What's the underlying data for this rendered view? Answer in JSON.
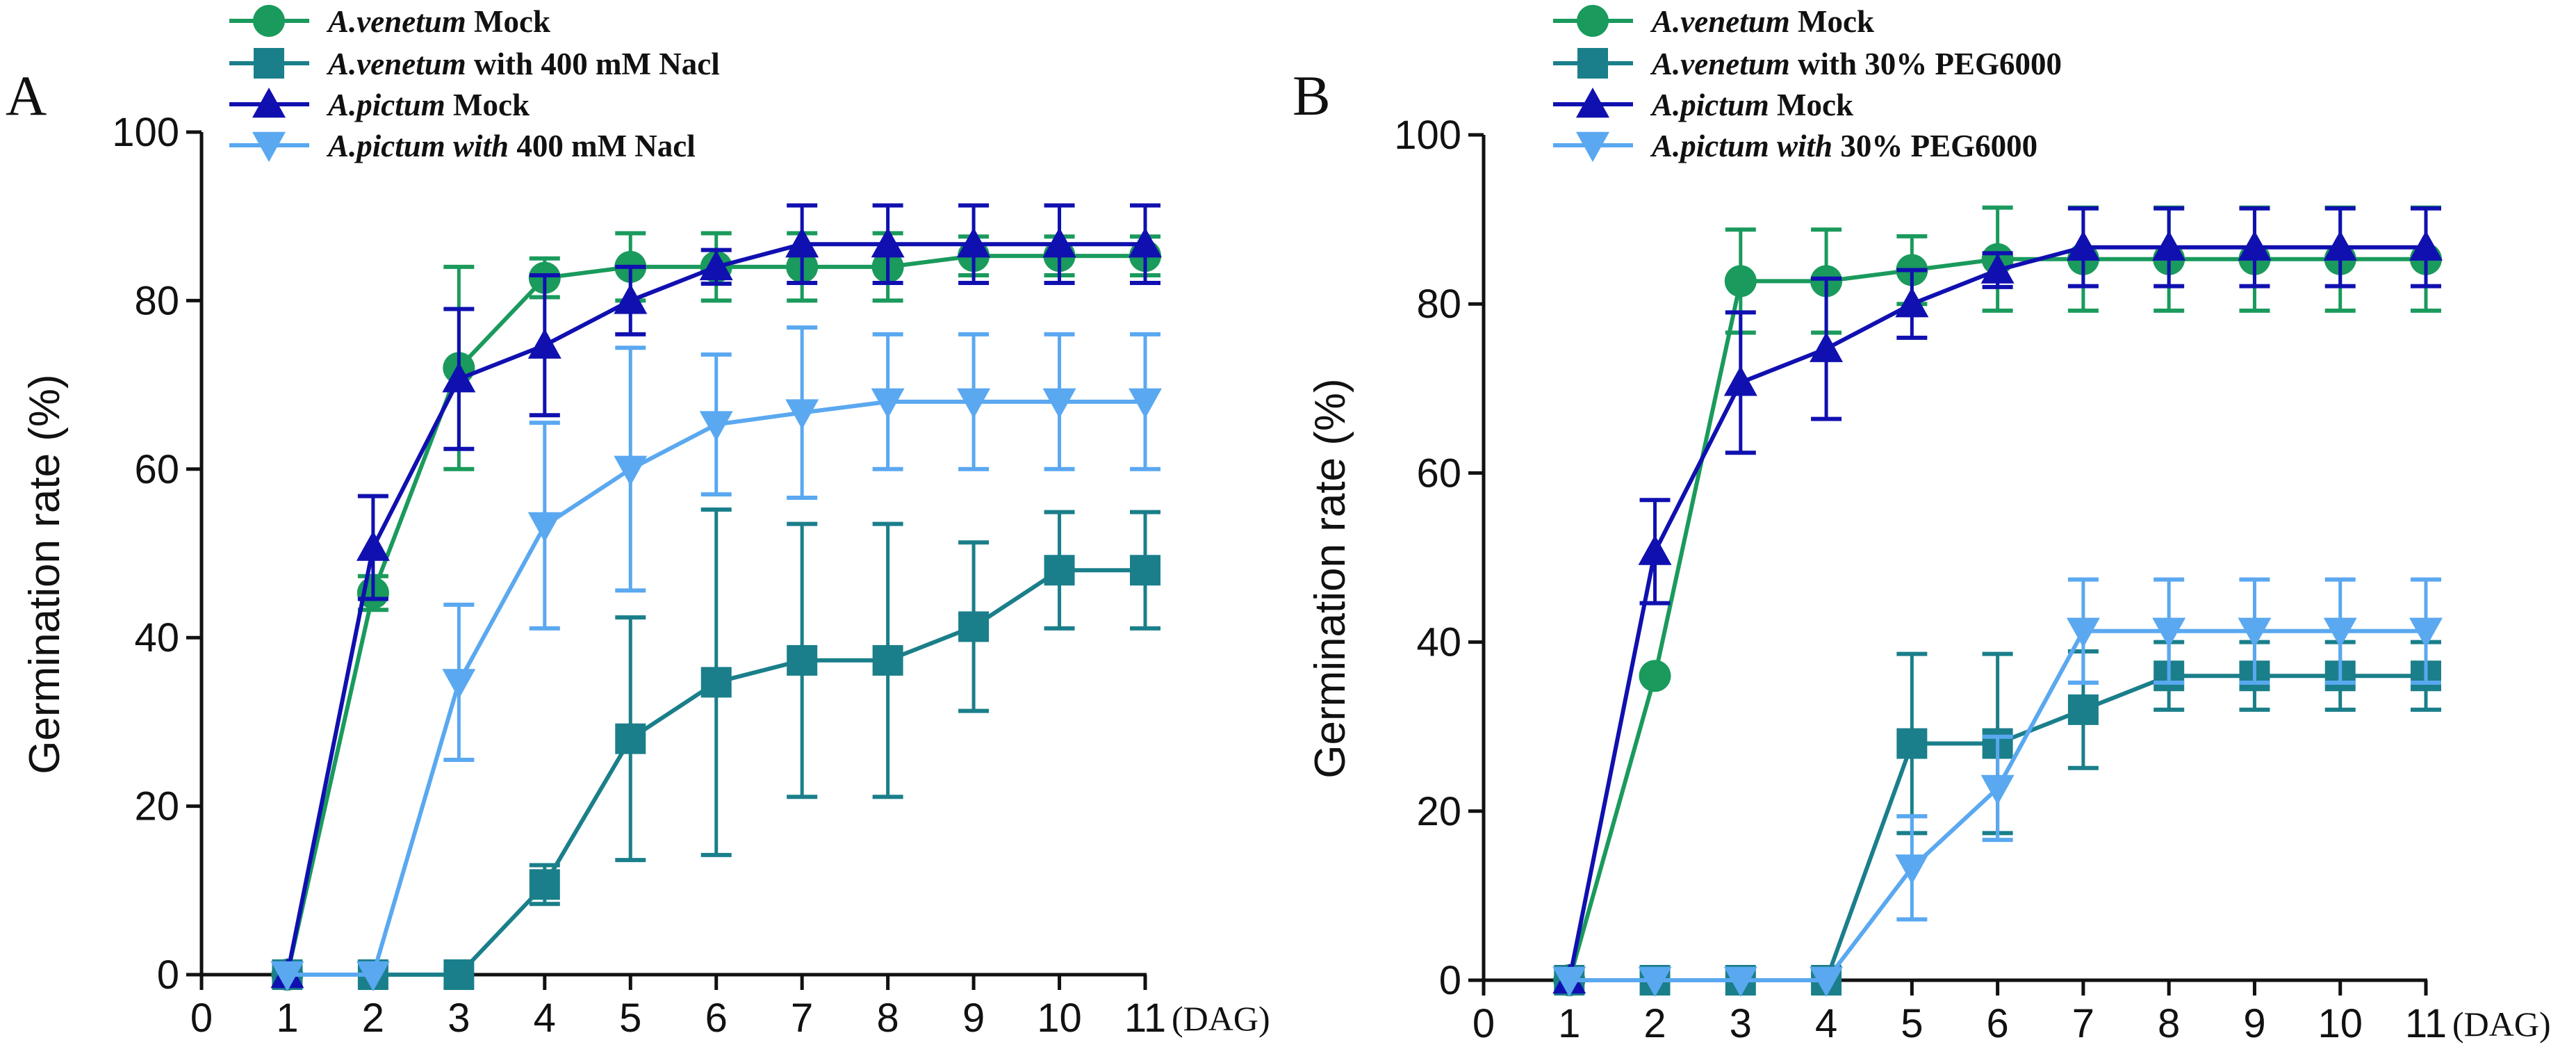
{
  "colors": {
    "venetum_mock": "#1a9a5c",
    "venetum_treat": "#1a7f8a",
    "pictum_mock": "#1010b0",
    "pictum_treat": "#5aa8f0"
  },
  "panels": [
    {
      "label": "A",
      "legend": [
        {
          "italic": "A.venetum",
          "rest": " Mock"
        },
        {
          "italic": "A.venetum",
          "rest": " with 400 mM Nacl"
        },
        {
          "italic": "A.pictum",
          "rest": " Mock"
        },
        {
          "italic": "A.pictum with",
          "rest": " 400 mM Nacl"
        }
      ]
    },
    {
      "label": "B",
      "legend": [
        {
          "italic": "A.venetum",
          "rest": " Mock"
        },
        {
          "italic": "A.venetum",
          "rest": " with 30% PEG6000"
        },
        {
          "italic": "A.pictum",
          "rest": " Mock"
        },
        {
          "italic": "A.pictum with",
          "rest": " 30% PEG6000"
        }
      ]
    }
  ],
  "chart_data": [
    {
      "type": "line",
      "panel": "A",
      "xlabel": "(DAG)",
      "ylabel": "Germination rate (%)",
      "xlim": [
        0,
        11
      ],
      "ylim": [
        0,
        100
      ],
      "xticks": [
        0,
        1,
        2,
        3,
        4,
        5,
        6,
        7,
        8,
        9,
        10,
        11
      ],
      "yticks": [
        0,
        20,
        40,
        60,
        80,
        100
      ],
      "x": [
        1,
        2,
        3,
        4,
        5,
        6,
        7,
        8,
        9,
        10,
        11
      ],
      "series": [
        {
          "key": "venetum_mock",
          "name": "A.venetum Mock",
          "marker": "circle",
          "values": [
            0,
            45.3,
            72,
            82.7,
            84,
            84,
            84,
            84,
            85.3,
            85.3,
            85.3
          ],
          "errors": [
            0,
            2,
            12,
            2.3,
            4,
            4,
            4,
            4,
            2.3,
            2.3,
            2.3
          ]
        },
        {
          "key": "venetum_treat",
          "name": "A.venetum with 400 mM Nacl",
          "marker": "square",
          "values": [
            0,
            0,
            0,
            10.7,
            28,
            34.7,
            37.3,
            37.3,
            41.3,
            48,
            48
          ],
          "errors": [
            0,
            0,
            0,
            2.3,
            14.4,
            20.5,
            16.2,
            16.2,
            10,
            6.9,
            6.9
          ]
        },
        {
          "key": "pictum_mock",
          "name": "A.pictum Mock",
          "marker": "triangle-up",
          "values": [
            0,
            50.7,
            70.7,
            74.7,
            80,
            84,
            86.7,
            86.7,
            86.7,
            86.7,
            86.7
          ],
          "errors": [
            0,
            6.1,
            8.3,
            8.3,
            4,
            2,
            4.6,
            4.6,
            4.6,
            4.6,
            4.6
          ]
        },
        {
          "key": "pictum_treat",
          "name": "A.pictum with 400 mM Nacl",
          "marker": "triangle-down",
          "values": [
            0,
            0,
            34.7,
            53.3,
            60,
            65.3,
            66.7,
            68,
            68,
            68,
            68
          ],
          "errors": [
            0,
            0,
            9.2,
            12.2,
            14.4,
            8.3,
            10.1,
            8,
            8,
            8,
            8
          ]
        }
      ]
    },
    {
      "type": "line",
      "panel": "B",
      "xlabel": "(DAG)",
      "ylabel": "Germination rate (%)",
      "xlim": [
        0,
        11
      ],
      "ylim": [
        0,
        100
      ],
      "xticks": [
        0,
        1,
        2,
        3,
        4,
        5,
        6,
        7,
        8,
        9,
        10,
        11
      ],
      "yticks": [
        0,
        20,
        40,
        60,
        80,
        100
      ],
      "x": [
        1,
        2,
        3,
        4,
        5,
        6,
        7,
        8,
        9,
        10,
        11
      ],
      "series": [
        {
          "key": "venetum_mock",
          "name": "A.venetum Mock",
          "marker": "circle",
          "values": [
            0,
            36,
            82.7,
            82.7,
            84,
            85.3,
            85.3,
            85.3,
            85.3,
            85.3,
            85.3
          ],
          "errors": [
            0,
            0,
            6.1,
            6.1,
            4,
            6.1,
            6.1,
            6.1,
            6.1,
            6.1,
            6.1
          ]
        },
        {
          "key": "venetum_treat",
          "name": "A.venetum with 30% PEG6000",
          "marker": "square",
          "values": [
            0,
            0,
            0,
            0,
            28,
            28,
            32,
            36,
            36,
            36,
            36
          ],
          "errors": [
            0,
            0,
            0,
            0,
            10.6,
            10.6,
            6.9,
            4,
            4,
            4,
            4
          ]
        },
        {
          "key": "pictum_mock",
          "name": "A.pictum Mock",
          "marker": "triangle-up",
          "values": [
            0,
            50.7,
            70.7,
            74.7,
            80,
            84,
            86.7,
            86.7,
            86.7,
            86.7,
            86.7
          ],
          "errors": [
            0,
            6.1,
            8.3,
            8.3,
            4,
            2,
            4.6,
            4.6,
            4.6,
            4.6,
            4.6
          ]
        },
        {
          "key": "pictum_treat",
          "name": "A.pictum with 30% PEG6000",
          "marker": "triangle-down",
          "values": [
            0,
            0,
            0,
            0,
            13.3,
            22.7,
            41.3,
            41.3,
            41.3,
            41.3,
            41.3
          ],
          "errors": [
            0,
            0,
            0,
            0,
            6.1,
            6.1,
            6.1,
            6.1,
            6.1,
            6.1,
            6.1
          ]
        }
      ]
    }
  ]
}
